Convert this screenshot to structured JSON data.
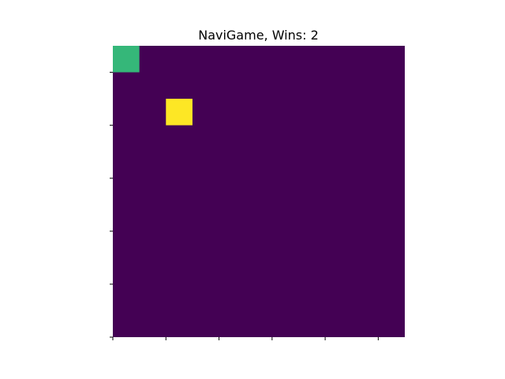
{
  "game": {
    "title": "NaviGame, Wins: 2",
    "grid_cols": 11,
    "grid_rows": 11,
    "background_color": "#440154",
    "agent": {
      "col": 0,
      "row": 0,
      "color": "#35b779"
    },
    "goal": {
      "col": 2,
      "row": 2,
      "color": "#fde725"
    },
    "x_tick_count": 6,
    "y_tick_count": 6
  }
}
